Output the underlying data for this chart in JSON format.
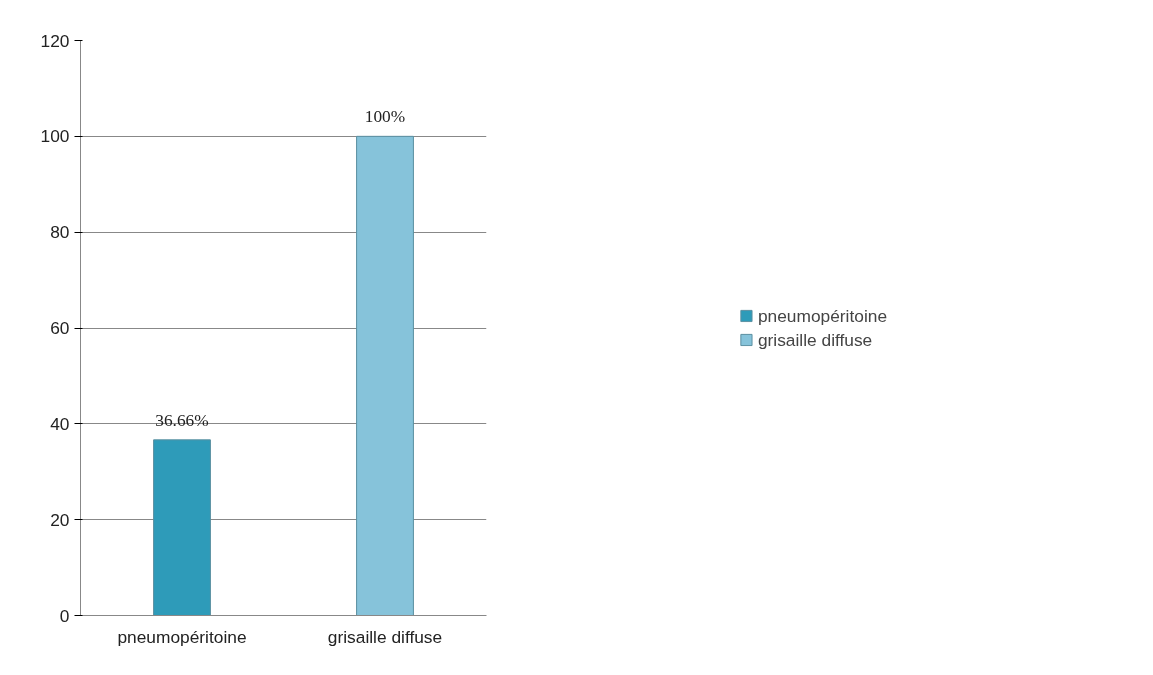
{
  "chart_data": {
    "type": "bar",
    "categories": [
      "pneumopéritoine",
      "grisaille diffuse"
    ],
    "series": [
      {
        "name": "pneumopéritoine",
        "color": "#2e9bb9",
        "values": [
          36.66,
          null
        ],
        "value_labels": [
          "36.66%",
          null
        ]
      },
      {
        "name": "grisaille diffuse",
        "color": "#86c3da",
        "values": [
          null,
          100
        ],
        "value_labels": [
          null,
          "100%"
        ]
      }
    ],
    "ylim": [
      0,
      120
    ],
    "yticks": [
      0,
      20,
      40,
      60,
      80,
      100,
      120
    ],
    "grid": "y",
    "legend": "right"
  }
}
